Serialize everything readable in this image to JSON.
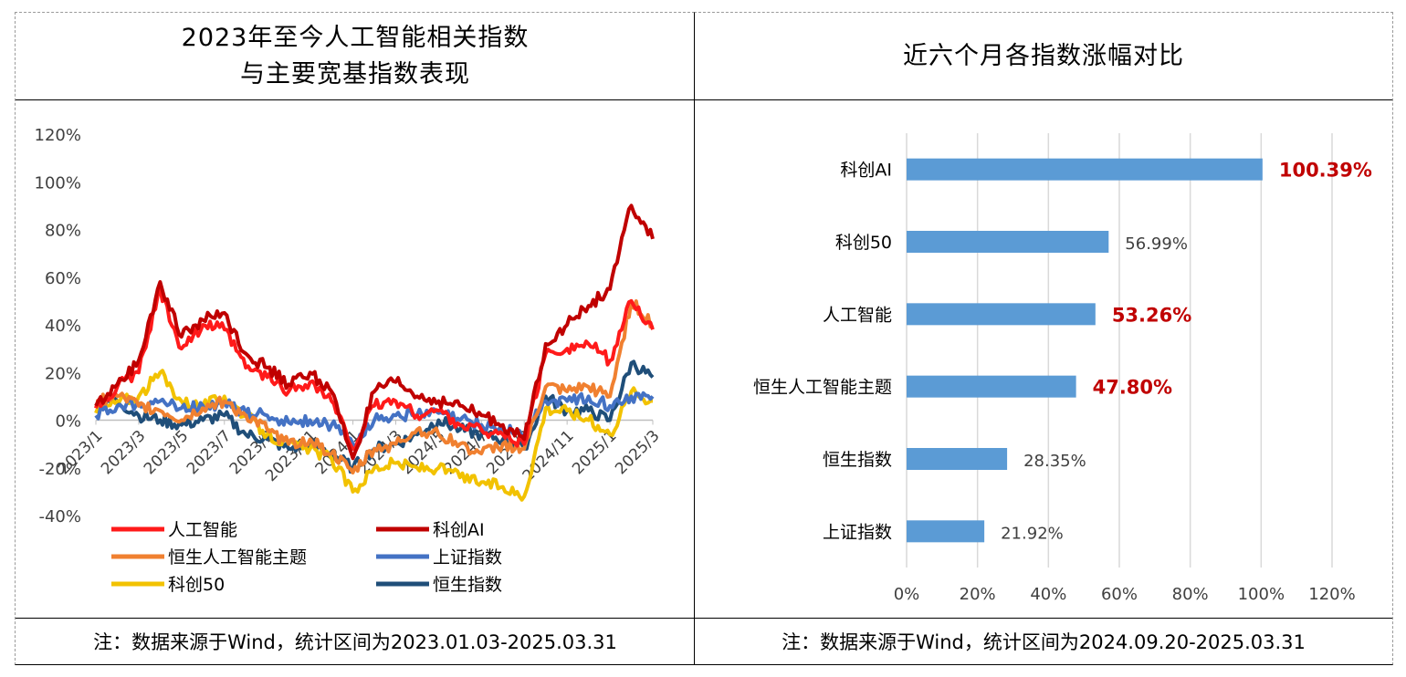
{
  "left": {
    "title_line1": "2023年至今人工智能相关指数",
    "title_line2": "与主要宽基指数表现",
    "footnote": "注：数据来源于Wind，统计区间为2023.01.03-2025.03.31"
  },
  "right": {
    "title": "近六个月各指数涨幅对比",
    "footnote": "注：数据来源于Wind，统计区间为2024.09.20-2025.03.31"
  },
  "chart_data": [
    {
      "type": "line",
      "title": "2023年至今人工智能相关指数与主要宽基指数表现",
      "y_ticks": [
        "120%",
        "100%",
        "80%",
        "60%",
        "40%",
        "20%",
        "0%",
        "-20%",
        "-40%"
      ],
      "ylim": [
        -40,
        120
      ],
      "x_ticks": [
        "2023/1",
        "2023/3",
        "2023/5",
        "2023/7",
        "2023/9",
        "2023/11",
        "2024/1",
        "2024/3",
        "2024/5",
        "2024/7",
        "2024/9",
        "2024/11",
        "2025/1",
        "2025/3"
      ],
      "legend_position": "bottom",
      "grid": false,
      "series": [
        {
          "name": "人工智能",
          "color": "#ff1a1a",
          "x": [
            "2023/1",
            "2023/2",
            "2023/3",
            "2023/4",
            "2023/5",
            "2023/6",
            "2023/7",
            "2023/8",
            "2023/9",
            "2023/10",
            "2023/11",
            "2023/12",
            "2024/1",
            "2024/2",
            "2024/3",
            "2024/4",
            "2024/5",
            "2024/6",
            "2024/7",
            "2024/8",
            "2024/9",
            "2024/10",
            "2024/11",
            "2024/12",
            "2025/1",
            "2025/2",
            "2025/3"
          ],
          "values": [
            5,
            14,
            20,
            55,
            30,
            40,
            38,
            22,
            18,
            12,
            16,
            8,
            -12,
            6,
            8,
            2,
            4,
            -2,
            -4,
            -6,
            -10,
            28,
            30,
            32,
            25,
            50,
            38
          ]
        },
        {
          "name": "科创AI",
          "color": "#c00000",
          "x": [
            "2023/1",
            "2023/2",
            "2023/3",
            "2023/4",
            "2023/5",
            "2023/6",
            "2023/7",
            "2023/8",
            "2023/9",
            "2023/10",
            "2023/11",
            "2023/12",
            "2024/1",
            "2024/2",
            "2024/3",
            "2024/4",
            "2024/5",
            "2024/6",
            "2024/7",
            "2024/8",
            "2024/9",
            "2024/10",
            "2024/11",
            "2024/12",
            "2025/1",
            "2025/2",
            "2025/3"
          ],
          "values": [
            6,
            15,
            25,
            58,
            35,
            42,
            45,
            28,
            22,
            15,
            20,
            12,
            -16,
            12,
            16,
            10,
            8,
            6,
            2,
            -2,
            -8,
            32,
            40,
            48,
            55,
            90,
            76
          ]
        },
        {
          "name": "恒生人工智能主题",
          "color": "#f08030",
          "x": [
            "2023/1",
            "2023/2",
            "2023/3",
            "2023/4",
            "2023/5",
            "2023/6",
            "2023/7",
            "2023/8",
            "2023/9",
            "2023/10",
            "2023/11",
            "2023/12",
            "2024/1",
            "2024/2",
            "2024/3",
            "2024/4",
            "2024/5",
            "2024/6",
            "2024/7",
            "2024/8",
            "2024/9",
            "2024/10",
            "2024/11",
            "2024/12",
            "2025/1",
            "2025/2",
            "2025/3"
          ],
          "values": [
            8,
            10,
            6,
            4,
            0,
            5,
            8,
            2,
            -4,
            -10,
            -8,
            -14,
            -22,
            -12,
            -10,
            -4,
            -6,
            -10,
            -14,
            -10,
            -12,
            14,
            12,
            14,
            10,
            50,
            40
          ]
        },
        {
          "name": "上证指数",
          "color": "#4472c4",
          "x": [
            "2023/1",
            "2023/2",
            "2023/3",
            "2023/4",
            "2023/5",
            "2023/6",
            "2023/7",
            "2023/8",
            "2023/9",
            "2023/10",
            "2023/11",
            "2023/12",
            "2024/1",
            "2024/2",
            "2024/3",
            "2024/4",
            "2024/5",
            "2024/6",
            "2024/7",
            "2024/8",
            "2024/9",
            "2024/10",
            "2024/11",
            "2024/12",
            "2025/1",
            "2025/2",
            "2025/3"
          ],
          "values": [
            2,
            6,
            7,
            8,
            5,
            6,
            7,
            3,
            2,
            -1,
            0,
            -2,
            -10,
            0,
            2,
            2,
            3,
            0,
            -2,
            -4,
            -6,
            8,
            8,
            10,
            6,
            10,
            10
          ]
        },
        {
          "name": "科创50",
          "color": "#f2c200",
          "x": [
            "2023/1",
            "2023/2",
            "2023/3",
            "2023/4",
            "2023/5",
            "2023/6",
            "2023/7",
            "2023/8",
            "2023/9",
            "2023/10",
            "2023/11",
            "2023/12",
            "2024/1",
            "2024/2",
            "2024/3",
            "2024/4",
            "2024/5",
            "2024/6",
            "2024/7",
            "2024/8",
            "2024/9",
            "2024/10",
            "2024/11",
            "2024/12",
            "2025/1",
            "2025/2",
            "2025/3"
          ],
          "values": [
            3,
            8,
            10,
            20,
            8,
            6,
            10,
            2,
            -6,
            -10,
            -12,
            -16,
            -30,
            -20,
            -18,
            -20,
            -20,
            -24,
            -26,
            -28,
            -32,
            5,
            4,
            0,
            -6,
            12,
            8
          ]
        },
        {
          "name": "恒生指数",
          "color": "#1f4e79",
          "x": [
            "2023/1",
            "2023/2",
            "2023/3",
            "2023/4",
            "2023/5",
            "2023/6",
            "2023/7",
            "2023/8",
            "2023/9",
            "2023/10",
            "2023/11",
            "2023/12",
            "2024/1",
            "2024/2",
            "2024/3",
            "2024/4",
            "2024/5",
            "2024/6",
            "2024/7",
            "2024/8",
            "2024/9",
            "2024/10",
            "2024/11",
            "2024/12",
            "2025/1",
            "2025/2",
            "2025/3"
          ],
          "values": [
            6,
            8,
            2,
            0,
            -2,
            0,
            2,
            -6,
            -8,
            -12,
            -10,
            -14,
            -20,
            -12,
            -10,
            -6,
            0,
            -4,
            -6,
            -8,
            -12,
            10,
            4,
            4,
            0,
            24,
            18
          ]
        }
      ]
    },
    {
      "type": "bar",
      "orientation": "horizontal",
      "title": "近六个月各指数涨幅对比",
      "categories": [
        "科创AI",
        "科创50",
        "人工智能",
        "恒生人工智能主题",
        "恒生指数",
        "上证指数"
      ],
      "values": [
        100.39,
        56.99,
        53.26,
        47.8,
        28.35,
        21.92
      ],
      "labels": [
        "100.39%",
        "56.99%",
        "53.26%",
        "47.80%",
        "28.35%",
        "21.92%"
      ],
      "label_colors": [
        "#c00000",
        "#404040",
        "#c00000",
        "#c00000",
        "#404040",
        "#404040"
      ],
      "bar_color": "#5b9bd5",
      "xlim": [
        0,
        120
      ],
      "x_ticks": [
        "0%",
        "20%",
        "40%",
        "60%",
        "80%",
        "100%",
        "120%"
      ],
      "grid": true
    }
  ]
}
